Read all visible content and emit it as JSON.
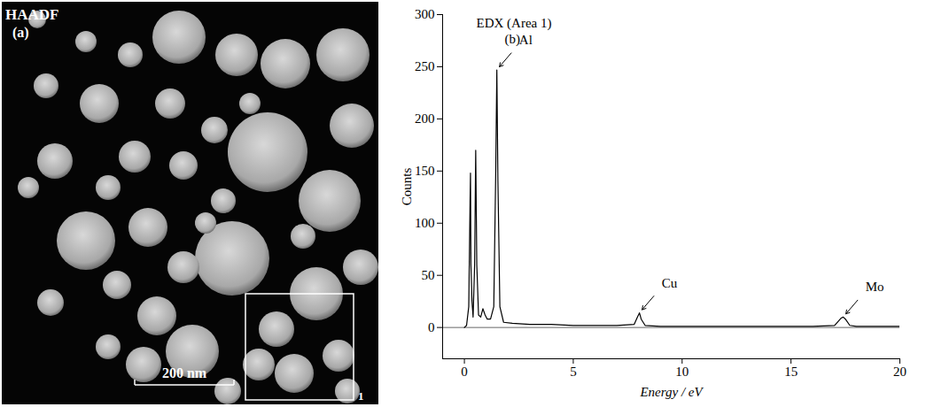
{
  "image_panel": {
    "label": "HAADF",
    "panel": "(a)",
    "scale_bar": "200 nm",
    "area_label": "1"
  },
  "chart_data": {
    "type": "line",
    "title": "EDX (Area 1)",
    "panel": "(b)",
    "x_label": "Energy / eV",
    "y_label": "Counts",
    "x": [
      0,
      0.1,
      0.2,
      0.26,
      0.28,
      0.3,
      0.35,
      0.4,
      0.47,
      0.52,
      0.57,
      0.65,
      0.75,
      0.85,
      0.95,
      1.05,
      1.2,
      1.35,
      1.44,
      1.49,
      1.54,
      1.63,
      1.8,
      2.2,
      3,
      4,
      5,
      6,
      7,
      7.8,
      7.95,
      8.04,
      8.12,
      8.3,
      9,
      10,
      11,
      12,
      13,
      14,
      15,
      16,
      17,
      17.3,
      17.4,
      17.5,
      17.7,
      18,
      19,
      20
    ],
    "values": [
      0,
      2,
      20,
      120,
      148,
      60,
      25,
      10,
      60,
      170,
      60,
      12,
      10,
      18,
      12,
      8,
      8,
      20,
      150,
      247,
      140,
      20,
      5,
      4,
      3,
      3,
      2,
      2,
      2,
      3,
      10,
      14,
      8,
      2,
      1,
      1,
      1,
      1,
      1,
      1,
      1,
      1,
      2,
      9,
      10,
      8,
      2,
      1,
      1,
      1
    ],
    "color": "#000000",
    "xlim": [
      -1,
      20
    ],
    "xticks": [
      0,
      5,
      10,
      15,
      20
    ],
    "ylim": [
      -30,
      300
    ],
    "yticks": [
      0,
      50,
      100,
      150,
      200,
      250,
      300
    ],
    "annotations": [
      {
        "text": "Al",
        "x": 1.49,
        "y": 247
      },
      {
        "text": "Cu",
        "x": 8.04,
        "y": 14
      },
      {
        "text": "Mo",
        "x": 17.4,
        "y": 10
      }
    ],
    "grid": false
  }
}
